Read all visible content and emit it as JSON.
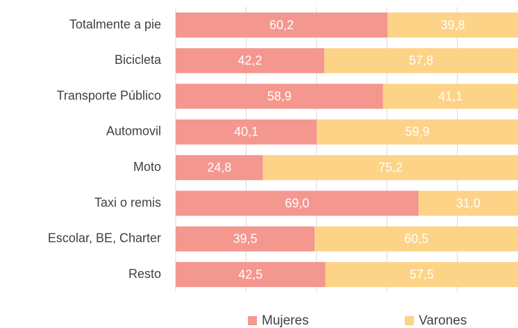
{
  "chart_data": {
    "type": "stacked-bar-horizontal",
    "categories": [
      "Totalmente a pie",
      "Bicicleta",
      "Transporte Público",
      "Automovil",
      "Moto",
      "Taxi o remis",
      "Escolar, BE, Charter",
      "Resto"
    ],
    "series": [
      {
        "name": "Mujeres",
        "color": "#f4978e",
        "values": [
          60.2,
          42.2,
          58.9,
          40.1,
          24.8,
          69.0,
          39.5,
          42.5
        ],
        "value_labels": [
          "60,2",
          "42,2",
          "58,9",
          "40,1",
          "24,8",
          "69,0",
          "39,5",
          "42,5"
        ]
      },
      {
        "name": "Varones",
        "color": "#fdd388",
        "values": [
          39.8,
          57.8,
          41.1,
          59.9,
          75.2,
          31.0,
          60.5,
          57.5
        ],
        "value_labels": [
          "39,8",
          "57,8",
          "41,1",
          "59,9",
          "75,2",
          "31,0",
          "60,5",
          "57,5"
        ]
      }
    ],
    "xlim": [
      0,
      100
    ],
    "xticks": [
      0,
      20,
      40,
      60,
      80,
      100
    ],
    "grid": true,
    "legend": "bottom"
  }
}
